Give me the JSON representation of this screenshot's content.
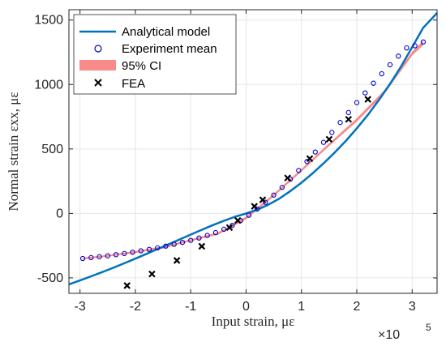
{
  "chart_data": {
    "type": "line",
    "title": "",
    "xlabel": "Input strain, με",
    "ylabel": "Normal strain εxx, με",
    "x_exponent_label": "×10",
    "x_exponent_power": "5",
    "xlim": [
      -3.2,
      3.45
    ],
    "ylim": [
      -620,
      1580
    ],
    "x_unit_multiplier": 100000,
    "xticks": [
      -3,
      -2,
      -1,
      0,
      1,
      2,
      3
    ],
    "xtick_labels": [
      "-3",
      "-2",
      "-1",
      "0",
      "1",
      "2",
      "3"
    ],
    "yticks": [
      -500,
      0,
      500,
      1000,
      1500
    ],
    "ytick_labels": [
      "-500",
      "0",
      "500",
      "1000",
      "1500"
    ],
    "grid": true,
    "legend_position": "top-left",
    "colors": {
      "analytical": "#0072bd",
      "experiment": "#0000cc",
      "ci": "#f88a8a",
      "fea": "#000000",
      "grid": "#e6e6e6",
      "axis": "#262626"
    },
    "series": [
      {
        "name": "Analytical model",
        "kind": "line",
        "x": [
          -3.2,
          -3.0,
          -2.8,
          -2.6,
          -2.4,
          -2.2,
          -2.0,
          -1.8,
          -1.6,
          -1.4,
          -1.2,
          -1.0,
          -0.8,
          -0.6,
          -0.4,
          -0.2,
          0.0,
          0.2,
          0.4,
          0.6,
          0.8,
          1.0,
          1.2,
          1.4,
          1.6,
          1.8,
          2.0,
          2.2,
          2.4,
          2.6,
          2.8,
          3.0,
          3.2,
          3.45
        ],
        "y": [
          -550,
          -520,
          -488,
          -455,
          -422,
          -387,
          -351,
          -314,
          -277,
          -240,
          -202,
          -164,
          -127,
          -91,
          -57,
          -26,
          0,
          29,
          67,
          115,
          173,
          238,
          310,
          388,
          472,
          562,
          660,
          765,
          880,
          1005,
          1140,
          1290,
          1440,
          1555
        ]
      },
      {
        "name": "Experiment mean",
        "kind": "markers",
        "x": [
          -2.95,
          -2.8,
          -2.65,
          -2.5,
          -2.35,
          -2.2,
          -2.05,
          -1.9,
          -1.75,
          -1.6,
          -1.45,
          -1.3,
          -1.15,
          -1.0,
          -0.85,
          -0.7,
          -0.55,
          -0.4,
          -0.25,
          -0.1,
          0.05,
          0.2,
          0.35,
          0.5,
          0.65,
          0.8,
          0.95,
          1.1,
          1.25,
          1.4,
          1.55,
          1.7,
          1.85,
          2.0,
          2.15,
          2.3,
          2.45,
          2.6,
          2.75,
          2.9,
          3.05,
          3.2
        ],
        "y": [
          -350,
          -343,
          -336,
          -329,
          -320,
          -311,
          -301,
          -290,
          -279,
          -267,
          -254,
          -240,
          -225,
          -209,
          -191,
          -171,
          -149,
          -123,
          -93,
          -56,
          -14,
          34,
          86,
          142,
          202,
          266,
          333,
          403,
          476,
          551,
          628,
          705,
          782,
          859,
          935,
          1010,
          1083,
          1153,
          1220,
          1284,
          1300,
          1330
        ]
      },
      {
        "name": "95% CI",
        "kind": "band",
        "x": [
          -2.95,
          -2.5,
          -2.0,
          -1.5,
          -1.0,
          -0.5,
          0.0,
          0.5,
          1.0,
          1.5,
          2.0,
          2.5,
          3.0,
          3.2
        ],
        "lower": [
          -357,
          -336,
          -307,
          -273,
          -216,
          -164,
          -45,
          132,
          325,
          522,
          712,
          929,
          1225,
          1305
        ],
        "upper": [
          -343,
          -322,
          -291,
          -255,
          -200,
          -146,
          -25,
          152,
          345,
          545,
          738,
          957,
          1255,
          1340
        ]
      },
      {
        "name": "FEA",
        "kind": "markers",
        "x": [
          -2.15,
          -1.7,
          -1.25,
          -0.8,
          -0.3,
          -0.15,
          0.15,
          0.3,
          0.75,
          1.15,
          1.5,
          1.85,
          2.2
        ],
        "y": [
          -560,
          -470,
          -365,
          -255,
          -110,
          -55,
          55,
          105,
          275,
          425,
          575,
          730,
          885
        ]
      }
    ]
  }
}
